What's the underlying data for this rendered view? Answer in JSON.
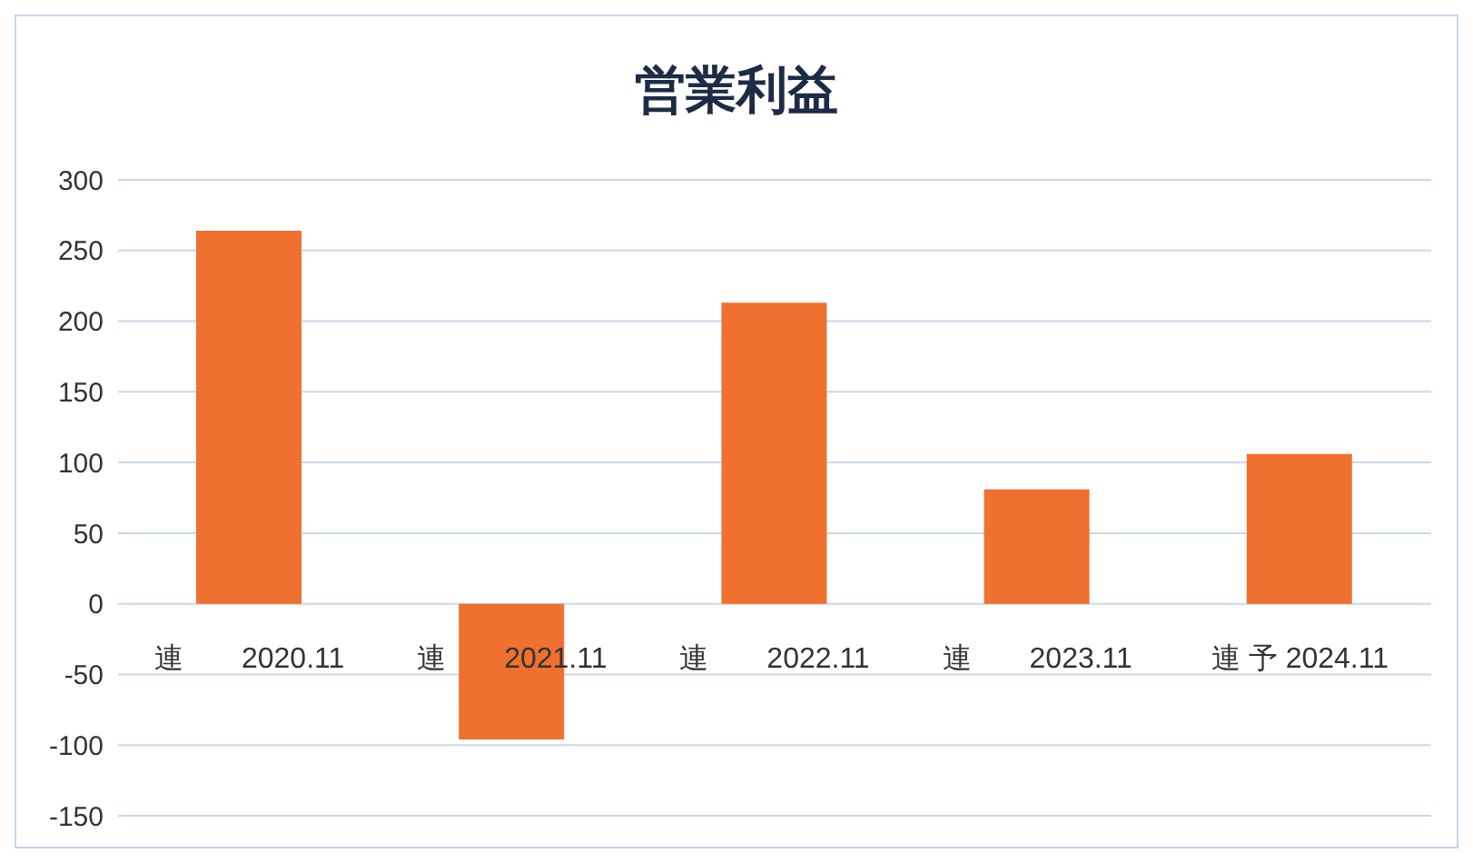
{
  "chart_data": {
    "type": "bar",
    "title": "営業利益",
    "categories": [
      "連　　2020.11",
      "連　　2021.11",
      "連　　2022.11",
      "連　　2023.11",
      "連 予 2024.11"
    ],
    "values": [
      264,
      -96,
      213,
      81,
      106
    ],
    "color": "#f07030",
    "ylim": [
      -150,
      300
    ],
    "yticks": [
      -150,
      -100,
      -50,
      0,
      50,
      100,
      150,
      200,
      250,
      300
    ],
    "grid": "y",
    "legend": false
  }
}
